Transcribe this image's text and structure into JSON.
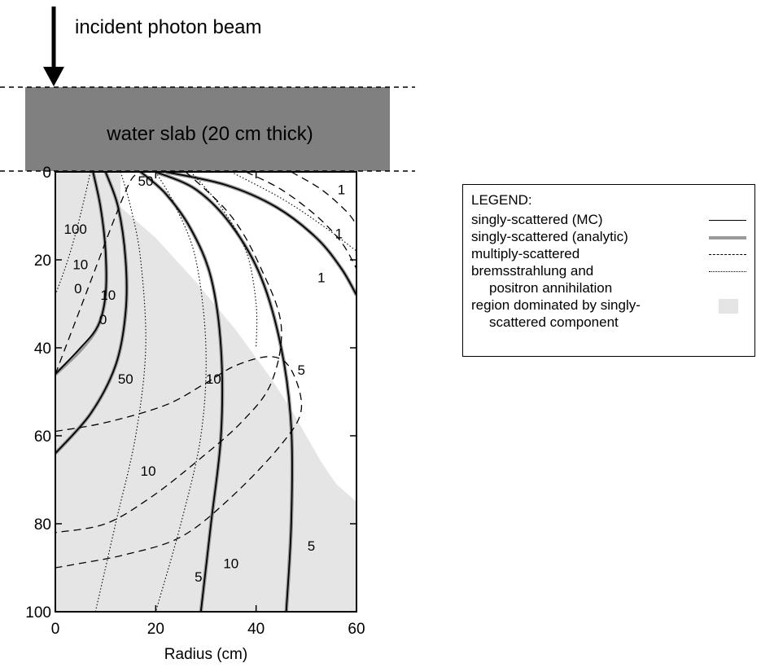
{
  "annotation": {
    "beam_label": "incident photon beam"
  },
  "chart_data": {
    "type": "line",
    "title": "",
    "xlabel": "Radius (cm)",
    "ylabel": "",
    "xlim": [
      0,
      60
    ],
    "ylim": [
      0,
      100
    ],
    "y_inverted": true,
    "xticks": [
      0,
      20,
      40,
      60
    ],
    "yticks": [
      0,
      20,
      40,
      60,
      80,
      100
    ],
    "slab_label": "water slab (20 cm thick)",
    "region_singly_dominated": [
      [
        13,
        0
      ],
      [
        13,
        8
      ],
      [
        20,
        15
      ],
      [
        28,
        25
      ],
      [
        36,
        36
      ],
      [
        43,
        47
      ],
      [
        47,
        54
      ],
      [
        50,
        60
      ],
      [
        53,
        66
      ],
      [
        56,
        71
      ],
      [
        60,
        75
      ],
      [
        60,
        100
      ],
      [
        0,
        100
      ],
      [
        0,
        0
      ]
    ],
    "series": [
      {
        "style": "mc",
        "name": "singly-scattered (MC)",
        "points": [
          [
            7.5,
            0
          ],
          [
            9,
            8
          ],
          [
            10,
            18
          ],
          [
            10,
            28
          ],
          [
            8.5,
            35
          ],
          [
            5,
            40
          ],
          [
            0,
            46
          ]
        ]
      },
      {
        "style": "an",
        "name": "singly-scattered (analytic)",
        "points": [
          [
            7.5,
            0
          ],
          [
            9,
            8
          ],
          [
            10,
            18
          ],
          [
            10,
            28
          ],
          [
            8.5,
            35
          ],
          [
            5,
            40.5
          ],
          [
            0,
            46
          ]
        ]
      },
      {
        "style": "mc",
        "name": "singly-scattered (MC)",
        "points": [
          [
            10,
            0
          ],
          [
            12.5,
            8
          ],
          [
            14,
            20
          ],
          [
            14,
            32
          ],
          [
            12,
            44
          ],
          [
            7,
            55
          ],
          [
            0,
            64
          ]
        ]
      },
      {
        "style": "an",
        "name": "singly-scattered (analytic)",
        "points": [
          [
            10,
            0
          ],
          [
            12.5,
            8
          ],
          [
            14,
            20
          ],
          [
            14,
            32
          ],
          [
            12,
            44
          ],
          [
            7,
            55
          ],
          [
            0,
            64
          ]
        ]
      },
      {
        "style": "mc",
        "name": "singly-scattered (MC)",
        "points": [
          [
            17,
            0
          ],
          [
            22,
            5
          ],
          [
            27,
            13
          ],
          [
            31,
            24
          ],
          [
            33,
            40
          ],
          [
            33,
            60
          ],
          [
            31,
            80
          ],
          [
            29,
            100
          ]
        ]
      },
      {
        "style": "an",
        "name": "singly-scattered (analytic)",
        "points": [
          [
            17,
            0
          ],
          [
            22,
            5
          ],
          [
            27,
            13
          ],
          [
            31,
            24
          ],
          [
            33,
            40
          ],
          [
            33,
            60
          ],
          [
            31,
            80
          ],
          [
            29,
            100
          ]
        ]
      },
      {
        "style": "mc",
        "name": "singly-scattered (MC)",
        "points": [
          [
            20,
            0
          ],
          [
            28,
            4
          ],
          [
            35,
            12
          ],
          [
            41,
            24
          ],
          [
            45,
            40
          ],
          [
            47,
            58
          ],
          [
            47,
            80
          ],
          [
            46,
            100
          ]
        ]
      },
      {
        "style": "an",
        "name": "singly-scattered (analytic)",
        "points": [
          [
            20,
            0
          ],
          [
            28,
            4
          ],
          [
            35,
            12
          ],
          [
            41,
            24
          ],
          [
            45,
            40
          ],
          [
            47,
            58
          ],
          [
            47,
            80
          ],
          [
            46,
            100
          ]
        ]
      },
      {
        "style": "mc",
        "name": "singly-scattered (MC)",
        "points": [
          [
            22,
            0
          ],
          [
            34,
            3
          ],
          [
            44,
            8
          ],
          [
            52,
            15
          ],
          [
            57,
            22
          ],
          [
            60,
            28
          ]
        ]
      },
      {
        "style": "an",
        "name": "singly-scattered (analytic)",
        "points": [
          [
            22,
            0
          ],
          [
            34,
            3
          ],
          [
            44,
            8
          ],
          [
            52,
            15
          ],
          [
            57,
            22
          ],
          [
            60,
            28
          ]
        ]
      },
      {
        "style": "ms",
        "name": "multiply-scattered",
        "points": [
          [
            0,
            46
          ],
          [
            4,
            34
          ],
          [
            8,
            22
          ],
          [
            12,
            10
          ],
          [
            15,
            2
          ],
          [
            17,
            0
          ]
        ]
      },
      {
        "style": "ms",
        "name": "multiply-scattered",
        "points": [
          [
            26,
            0
          ],
          [
            35,
            10
          ],
          [
            41,
            22
          ],
          [
            45,
            35
          ],
          [
            43,
            48
          ],
          [
            37,
            57
          ],
          [
            28,
            66
          ],
          [
            19,
            74
          ],
          [
            10,
            80
          ],
          [
            0,
            82
          ]
        ]
      },
      {
        "style": "ms",
        "name": "multiply-scattered",
        "points": [
          [
            0,
            59
          ],
          [
            10,
            57
          ],
          [
            22,
            53
          ],
          [
            30,
            48
          ],
          [
            36,
            44
          ],
          [
            43,
            42
          ],
          [
            47,
            45
          ],
          [
            49,
            54
          ],
          [
            45,
            62
          ],
          [
            35,
            74
          ],
          [
            25,
            83
          ],
          [
            14,
            87
          ],
          [
            5,
            89
          ],
          [
            0,
            90
          ]
        ]
      },
      {
        "style": "ms",
        "name": "multiply-scattered",
        "points": [
          [
            38,
            0
          ],
          [
            45,
            4
          ],
          [
            52,
            10
          ],
          [
            57,
            16
          ],
          [
            60,
            22
          ]
        ]
      },
      {
        "style": "ms",
        "name": "multiply-scattered",
        "points": [
          [
            47,
            0
          ],
          [
            53,
            4
          ],
          [
            58,
            9
          ],
          [
            60,
            12
          ]
        ]
      },
      {
        "style": "br",
        "name": "bremsstrahlung and positron annihilation",
        "points": [
          [
            0,
            28
          ],
          [
            2.5,
            20
          ],
          [
            4.5,
            12
          ],
          [
            6,
            5
          ],
          [
            7,
            0
          ]
        ]
      },
      {
        "style": "br",
        "name": "bremsstrahlung and positron annihilation",
        "points": [
          [
            13,
            0
          ],
          [
            15,
            8
          ],
          [
            17,
            20
          ],
          [
            18,
            40
          ],
          [
            16,
            60
          ],
          [
            12,
            80
          ],
          [
            8,
            100
          ]
        ]
      },
      {
        "style": "br",
        "name": "bremsstrahlung and positron annihilation",
        "points": [
          [
            20,
            0
          ],
          [
            24,
            8
          ],
          [
            28,
            20
          ],
          [
            30,
            40
          ],
          [
            29,
            60
          ],
          [
            25,
            80
          ],
          [
            20,
            100
          ]
        ]
      },
      {
        "style": "br",
        "name": "bremsstrahlung and positron annihilation",
        "points": [
          [
            27,
            0
          ],
          [
            33,
            8
          ],
          [
            38,
            18
          ],
          [
            40,
            30
          ],
          [
            40,
            40
          ]
        ]
      },
      {
        "style": "br",
        "name": "bremsstrahlung and positron annihilation",
        "points": [
          [
            35,
            0
          ],
          [
            45,
            6
          ],
          [
            53,
            12
          ],
          [
            60,
            18
          ]
        ]
      }
    ],
    "contour_labels": [
      {
        "text": "50",
        "x": 18,
        "y": 2
      },
      {
        "text": "100",
        "x": 4,
        "y": 13
      },
      {
        "text": "10",
        "x": 5,
        "y": 21
      },
      {
        "text": "0",
        "x": 4.5,
        "y": 26.5
      },
      {
        "text": "10",
        "x": 10.5,
        "y": 28
      },
      {
        "text": "0",
        "x": 9.5,
        "y": 33.5
      },
      {
        "text": "50",
        "x": 14,
        "y": 47
      },
      {
        "text": "10",
        "x": 31.5,
        "y": 47
      },
      {
        "text": "10",
        "x": 18.5,
        "y": 68
      },
      {
        "text": "5",
        "x": 28.5,
        "y": 92
      },
      {
        "text": "10",
        "x": 35,
        "y": 89
      },
      {
        "text": "5",
        "x": 49,
        "y": 45
      },
      {
        "text": "5",
        "x": 51,
        "y": 85
      },
      {
        "text": "1",
        "x": 57,
        "y": 4
      },
      {
        "text": "1",
        "x": 56.5,
        "y": 14
      },
      {
        "text": "1",
        "x": 53,
        "y": 24
      }
    ],
    "legend": {
      "title": "LEGEND:",
      "items": [
        {
          "key": "mc",
          "label": "singly-scattered (MC)"
        },
        {
          "key": "an",
          "label": "singly-scattered (analytic)"
        },
        {
          "key": "ms",
          "label": "multiply-scattered"
        },
        {
          "key": "br",
          "label": "bremsstrahlung and",
          "label2": "positron annihilation"
        },
        {
          "key": "rg",
          "label": "region dominated by singly-",
          "label2": "scattered component"
        }
      ]
    },
    "legend_placement": "right"
  }
}
